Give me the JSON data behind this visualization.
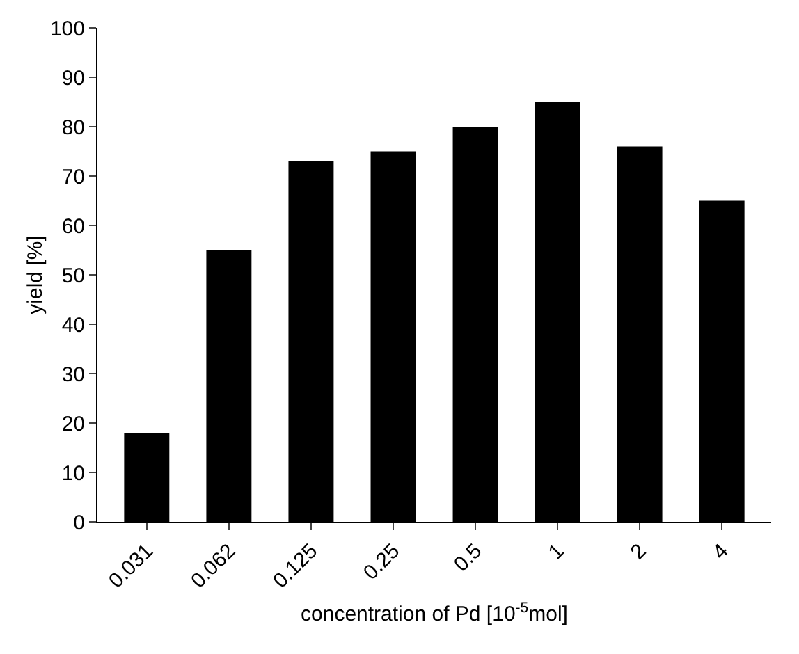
{
  "chart_data": {
    "type": "bar",
    "categories": [
      "0.031",
      "0.062",
      "0.125",
      "0.25",
      "0.5",
      "1",
      "2",
      "4"
    ],
    "values": [
      18,
      55,
      73,
      75,
      80,
      85,
      76,
      65
    ],
    "color": "#000000",
    "xlabel": "concentration of Pd [10$^{-5}$mol]",
    "ylabel": "yield [%]",
    "ylim": [
      0,
      100
    ],
    "yticks": [
      0,
      10,
      20,
      30,
      40,
      50,
      60,
      70,
      80,
      90,
      100
    ],
    "grid": false,
    "legend": false
  }
}
